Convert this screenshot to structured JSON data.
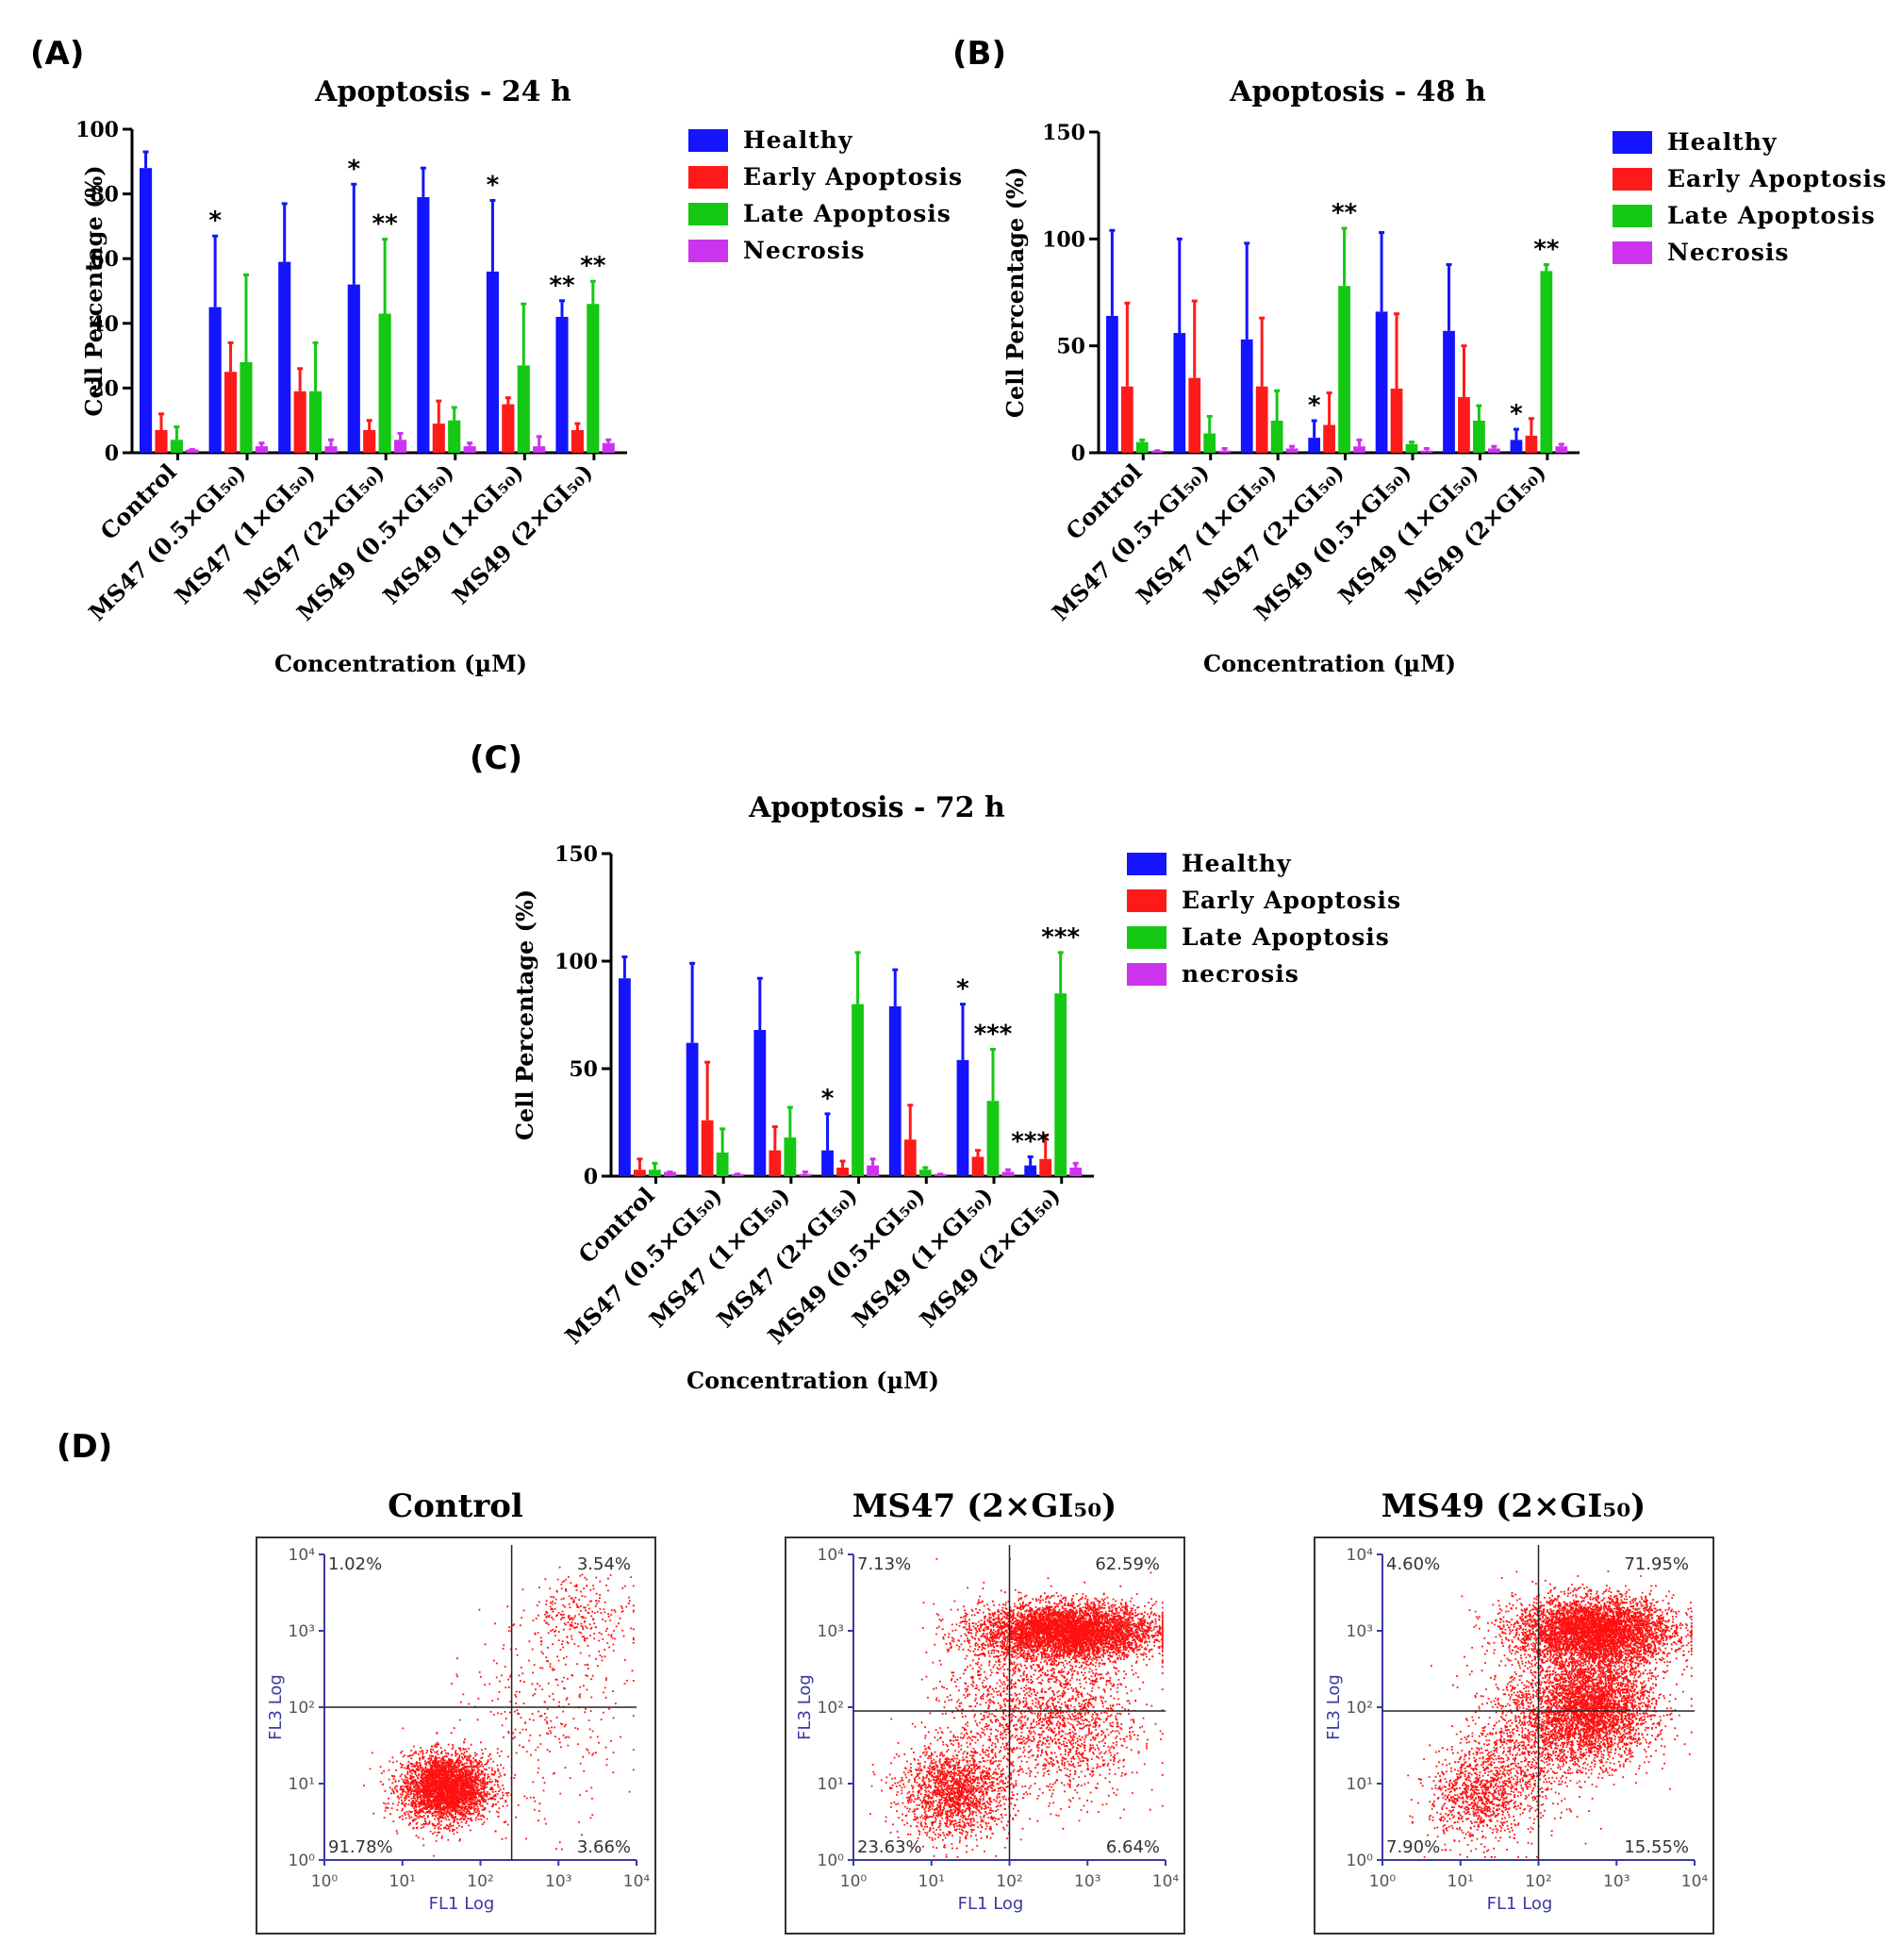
{
  "colors": {
    "healthy": "#1414ff",
    "early": "#ff1a1a",
    "late": "#14c814",
    "necrosis": "#cc33ee",
    "dot": "#ff1010",
    "axis": "#000000",
    "flow_axis": "#3a3aa0"
  },
  "chart_data": [
    {
      "type": "bar",
      "panel": "(A)",
      "title": "Apoptosis - 24 h",
      "xlabel": "Concentration (µM)",
      "ylabel": "Cell Percentage (%)",
      "ylim": [
        0,
        100
      ],
      "yticks": [
        0,
        20,
        40,
        60,
        80,
        100
      ],
      "categories": [
        "Control",
        "MS47 (0.5×GI₅₀)",
        "MS47 (1×GI₅₀)",
        "MS47 (2×GI₅₀)",
        "MS49 (0.5×GI₅₀)",
        "MS49 (1×GI₅₀)",
        "MS49 (2×GI₅₀)"
      ],
      "legend": [
        "Healthy",
        "Early Apoptosis",
        "Late Apoptosis",
        "Necrosis"
      ],
      "series": [
        {
          "name": "Healthy",
          "values": [
            88,
            45,
            59,
            52,
            79,
            56,
            42
          ],
          "error": [
            93,
            67,
            77,
            83,
            88,
            78,
            47
          ]
        },
        {
          "name": "Early Apoptosis",
          "values": [
            7,
            25,
            19,
            7,
            9,
            15,
            7
          ],
          "error": [
            12,
            34,
            26,
            10,
            16,
            17,
            9
          ]
        },
        {
          "name": "Late Apoptosis",
          "values": [
            4,
            28,
            19,
            43,
            10,
            27,
            46
          ],
          "error": [
            8,
            55,
            34,
            66,
            14,
            46,
            53
          ]
        },
        {
          "name": "Necrosis",
          "values": [
            1,
            2,
            2,
            4,
            2,
            2,
            3
          ],
          "error": [
            1,
            3,
            4,
            6,
            3,
            5,
            4
          ]
        }
      ],
      "annotations": [
        {
          "category": 1,
          "series": 0,
          "text": "*"
        },
        {
          "category": 3,
          "series": 0,
          "text": "*"
        },
        {
          "category": 3,
          "series": 2,
          "text": "**"
        },
        {
          "category": 5,
          "series": 0,
          "text": "*"
        },
        {
          "category": 6,
          "series": 0,
          "text": "**"
        },
        {
          "category": 6,
          "series": 2,
          "text": "**"
        }
      ]
    },
    {
      "type": "bar",
      "panel": "(B)",
      "title": "Apoptosis - 48 h",
      "xlabel": "Concentration (µM)",
      "ylabel": "Cell Percentage (%)",
      "ylim": [
        0,
        150
      ],
      "yticks": [
        0,
        50,
        100,
        150
      ],
      "categories": [
        "Control",
        "MS47 (0.5×GI₅₀)",
        "MS47 (1×GI₅₀)",
        "MS47 (2×GI₅₀)",
        "MS49 (0.5×GI₅₀)",
        "MS49 (1×GI₅₀)",
        "MS49 (2×GI₅₀)"
      ],
      "legend": [
        "Healthy",
        "Early Apoptosis",
        "Late Apoptosis",
        "Necrosis"
      ],
      "series": [
        {
          "name": "Healthy",
          "values": [
            64,
            56,
            53,
            7,
            66,
            57,
            6
          ],
          "error": [
            104,
            100,
            98,
            15,
            103,
            88,
            11
          ]
        },
        {
          "name": "Early Apoptosis",
          "values": [
            31,
            35,
            31,
            13,
            30,
            26,
            8
          ],
          "error": [
            70,
            71,
            63,
            28,
            65,
            50,
            16
          ]
        },
        {
          "name": "Late Apoptosis",
          "values": [
            5,
            9,
            15,
            78,
            4,
            15,
            85
          ],
          "error": [
            6,
            17,
            29,
            105,
            5,
            22,
            88
          ]
        },
        {
          "name": "Necrosis",
          "values": [
            1,
            1,
            2,
            3,
            1,
            2,
            3
          ],
          "error": [
            1,
            2,
            3,
            6,
            2,
            3,
            4
          ]
        }
      ],
      "annotations": [
        {
          "category": 3,
          "series": 0,
          "text": "*"
        },
        {
          "category": 3,
          "series": 2,
          "text": "**"
        },
        {
          "category": 6,
          "series": 0,
          "text": "*"
        },
        {
          "category": 6,
          "series": 2,
          "text": "**"
        }
      ]
    },
    {
      "type": "bar",
      "panel": "(C)",
      "title": "Apoptosis - 72 h",
      "xlabel": "Concentration (µM)",
      "ylabel": "Cell Percentage (%)",
      "ylim": [
        0,
        150
      ],
      "yticks": [
        0,
        50,
        100,
        150
      ],
      "categories": [
        "Control",
        "MS47 (0.5×GI₅₀)",
        "MS47 (1×GI₅₀)",
        "MS47 (2×GI₅₀)",
        "MS49 (0.5×GI₅₀)",
        "MS49 (1×GI₅₀)",
        "MS49 (2×GI₅₀)"
      ],
      "legend": [
        "Healthy",
        "Early Apoptosis",
        "Late Apoptosis",
        "necrosis"
      ],
      "series": [
        {
          "name": "Healthy",
          "values": [
            92,
            62,
            68,
            12,
            79,
            54,
            5
          ],
          "error": [
            102,
            99,
            92,
            29,
            96,
            80,
            9
          ]
        },
        {
          "name": "Early Apoptosis",
          "values": [
            3,
            26,
            12,
            4,
            17,
            9,
            8
          ],
          "error": [
            8,
            53,
            23,
            7,
            33,
            12,
            19
          ]
        },
        {
          "name": "Late Apoptosis",
          "values": [
            3,
            11,
            18,
            80,
            3,
            35,
            85
          ],
          "error": [
            6,
            22,
            32,
            104,
            4,
            59,
            104
          ]
        },
        {
          "name": "Necrosis",
          "values": [
            2,
            1,
            1,
            5,
            1,
            2,
            4
          ],
          "error": [
            2,
            1,
            2,
            8,
            1,
            3,
            6
          ]
        }
      ],
      "annotations": [
        {
          "category": 3,
          "series": 0,
          "text": "*"
        },
        {
          "category": 5,
          "series": 0,
          "text": "*"
        },
        {
          "category": 5,
          "series": 2,
          "text": "***"
        },
        {
          "category": 6,
          "series": 0,
          "text": "***"
        },
        {
          "category": 6,
          "series": 2,
          "text": "***"
        }
      ]
    },
    {
      "type": "scatter",
      "panel": "(D)",
      "xlabel": "FL1 Log",
      "ylabel": "FL3 Log",
      "xticks": [
        "10⁰",
        "10¹",
        "10²",
        "10³",
        "10⁴"
      ],
      "yticks": [
        "10⁰",
        "10¹",
        "10²",
        "10³",
        "10⁴"
      ],
      "plots": [
        {
          "title": "Control",
          "quadrants": {
            "ul": "1.02%",
            "ur": "3.54%",
            "ll": "91.78%",
            "lr": "3.66%"
          },
          "gate": {
            "x": 2.4,
            "y": 2.0
          }
        },
        {
          "title": "MS47 (2×GI₅₀)",
          "quadrants": {
            "ul": "7.13%",
            "ur": "62.59%",
            "ll": "23.63%",
            "lr": "6.64%"
          },
          "gate": {
            "x": 2.0,
            "y": 1.95
          }
        },
        {
          "title": "MS49 (2×GI₅₀)",
          "quadrants": {
            "ul": "4.60%",
            "ur": "71.95%",
            "ll": "7.90%",
            "lr": "15.55%"
          },
          "gate": {
            "x": 2.0,
            "y": 1.95
          }
        }
      ]
    }
  ]
}
